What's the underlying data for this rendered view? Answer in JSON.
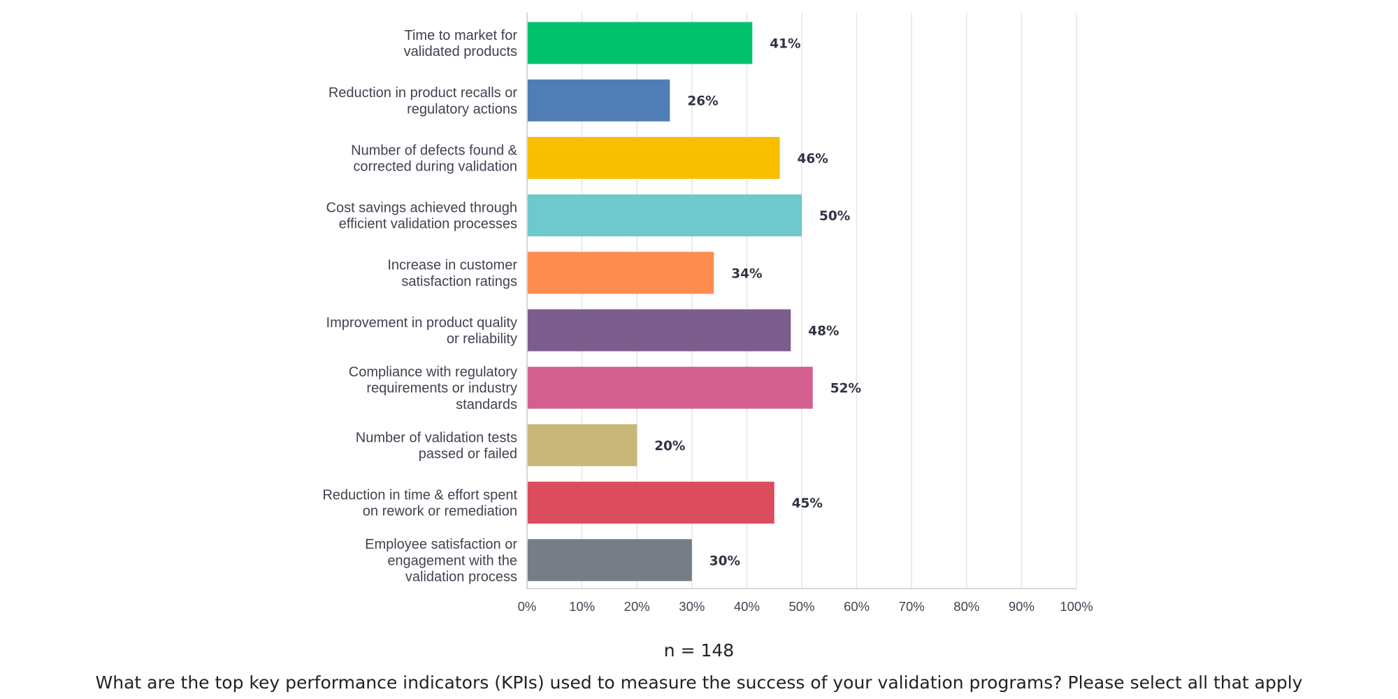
{
  "chart_data": {
    "type": "bar",
    "orientation": "horizontal",
    "categories": [
      [
        "Time to market for",
        "validated products"
      ],
      [
        "Reduction in product recalls or",
        "regulatory actions"
      ],
      [
        "Number of defects found &",
        "corrected during validation"
      ],
      [
        "Cost savings achieved through",
        "efficient validation processes"
      ],
      [
        "Increase in customer",
        "satisfaction ratings"
      ],
      [
        "Improvement in product quality",
        "or reliability"
      ],
      [
        "Compliance with regulatory",
        "requirements or industry",
        "standards"
      ],
      [
        "Number of validation tests",
        "passed or failed"
      ],
      [
        "Reduction in time & effort spent",
        "on rework or remediation"
      ],
      [
        "Employee satisfaction or",
        "engagement with the",
        "validation process"
      ]
    ],
    "values": [
      41,
      26,
      46,
      50,
      34,
      48,
      52,
      20,
      45,
      30
    ],
    "value_labels": [
      "41%",
      "26%",
      "46%",
      "50%",
      "34%",
      "48%",
      "52%",
      "20%",
      "45%",
      "30%"
    ],
    "bar_colors": [
      "#00c16e",
      "#507db6",
      "#f8bf00",
      "#6ec9cd",
      "#fe8b50",
      "#7c5e8e",
      "#d35f8f",
      "#c7b779",
      "#db4d5d",
      "#767d84"
    ],
    "xlim": [
      0,
      100
    ],
    "x_ticks": [
      "0%",
      "10%",
      "20%",
      "30%",
      "40%",
      "50%",
      "60%",
      "70%",
      "80%",
      "90%",
      "100%"
    ],
    "grid": true,
    "legend": "none"
  },
  "footer": {
    "sample_size": "n = 148",
    "question": "What are the top key performance indicators (KPIs) used to measure the success of your validation programs? Please select all that apply"
  }
}
